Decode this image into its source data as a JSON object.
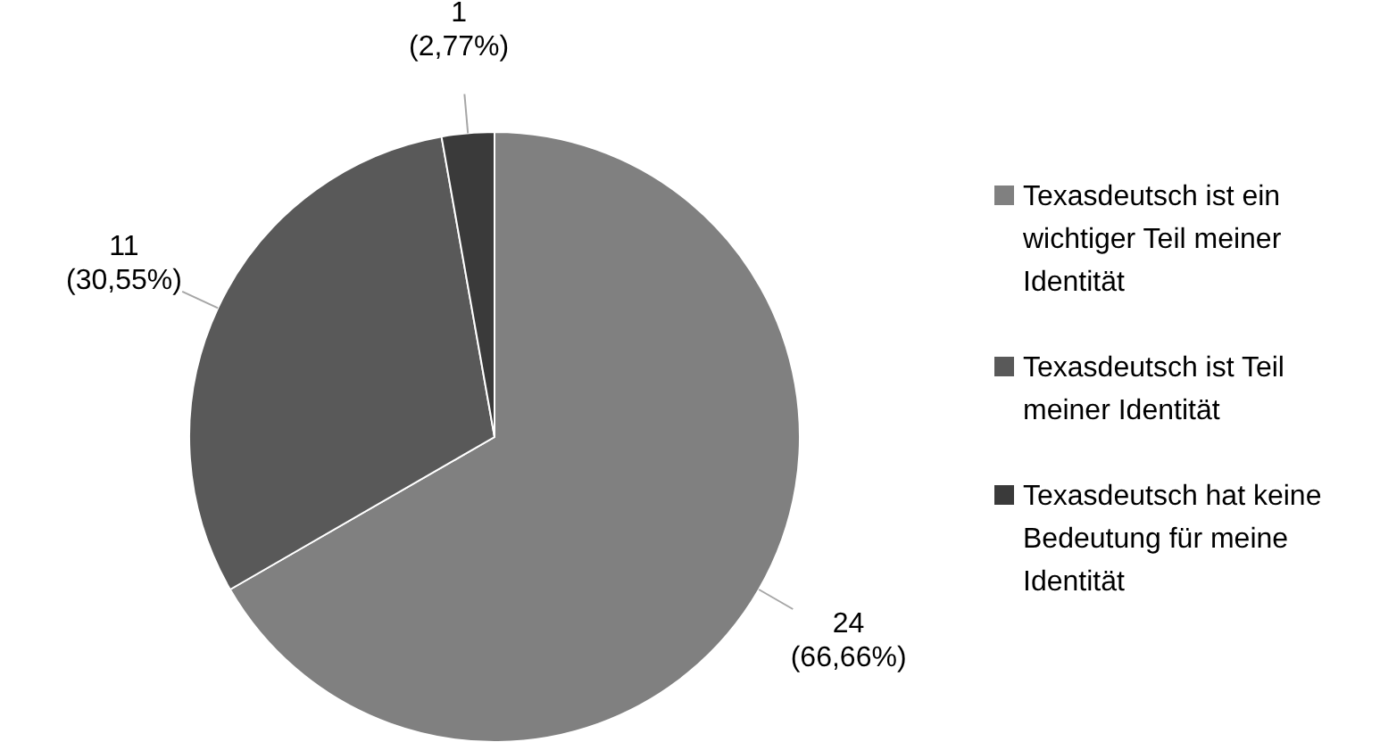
{
  "chart_data": {
    "type": "pie",
    "categories": [
      "Texasdeutsch ist ein wichtiger Teil meiner Identität",
      "Texasdeutsch ist Teil meiner Identität",
      "Texasdeutsch hat keine Bedeutung für meine Identität"
    ],
    "values": [
      24,
      11,
      1
    ],
    "colors": [
      "#808080",
      "#595959",
      "#3a3a3a"
    ],
    "value_labels": [
      "24\n(66,66%)",
      "11\n(30,55%)",
      "1\n(2,77%)"
    ],
    "legend": "right"
  }
}
